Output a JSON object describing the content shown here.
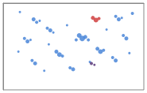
{
  "chart_data": {
    "type": "scatter",
    "tick_labels": false,
    "xlim": [
      0,
      185
    ],
    "ylim": [
      0,
      118
    ],
    "series": [
      {
        "color": "#4a86d8",
        "marker": "circle",
        "values": [
          [
            22,
            12,
            3
          ],
          [
            40,
            22,
            5
          ],
          [
            44,
            26,
            4
          ],
          [
            48,
            24,
            3
          ],
          [
            58,
            34,
            4
          ],
          [
            62,
            37,
            5
          ],
          [
            66,
            40,
            3
          ],
          [
            28,
            48,
            4
          ],
          [
            32,
            52,
            5
          ],
          [
            36,
            50,
            3
          ],
          [
            100,
            44,
            6
          ],
          [
            104,
            48,
            7
          ],
          [
            108,
            46,
            5
          ],
          [
            112,
            50,
            4
          ],
          [
            96,
            50,
            4
          ],
          [
            70,
            66,
            5
          ],
          [
            74,
            70,
            6
          ],
          [
            78,
            72,
            4
          ],
          [
            124,
            62,
            5
          ],
          [
            128,
            66,
            6
          ],
          [
            132,
            64,
            4
          ],
          [
            148,
            18,
            4
          ],
          [
            152,
            22,
            5
          ],
          [
            156,
            20,
            3
          ],
          [
            158,
            44,
            4
          ],
          [
            162,
            48,
            5
          ],
          [
            38,
            78,
            4
          ],
          [
            42,
            82,
            5
          ],
          [
            88,
            88,
            4
          ],
          [
            92,
            90,
            5
          ],
          [
            144,
            74,
            4
          ],
          [
            148,
            78,
            5
          ],
          [
            170,
            14,
            4
          ],
          [
            84,
            30,
            3
          ],
          [
            136,
            36,
            3
          ],
          [
            20,
            66,
            3
          ],
          [
            60,
            56,
            3
          ],
          [
            114,
            80,
            3
          ],
          [
            166,
            68,
            3
          ],
          [
            54,
            92,
            3
          ]
        ]
      },
      {
        "color": "#d04040",
        "marker": "circle",
        "values": [
          [
            118,
            20,
            5
          ],
          [
            122,
            23,
            6
          ],
          [
            126,
            21,
            4
          ]
        ]
      },
      {
        "color": "#5a3a7a",
        "marker": "circle",
        "values": [
          [
            116,
            82,
            4
          ],
          [
            120,
            84,
            3
          ]
        ]
      }
    ]
  }
}
